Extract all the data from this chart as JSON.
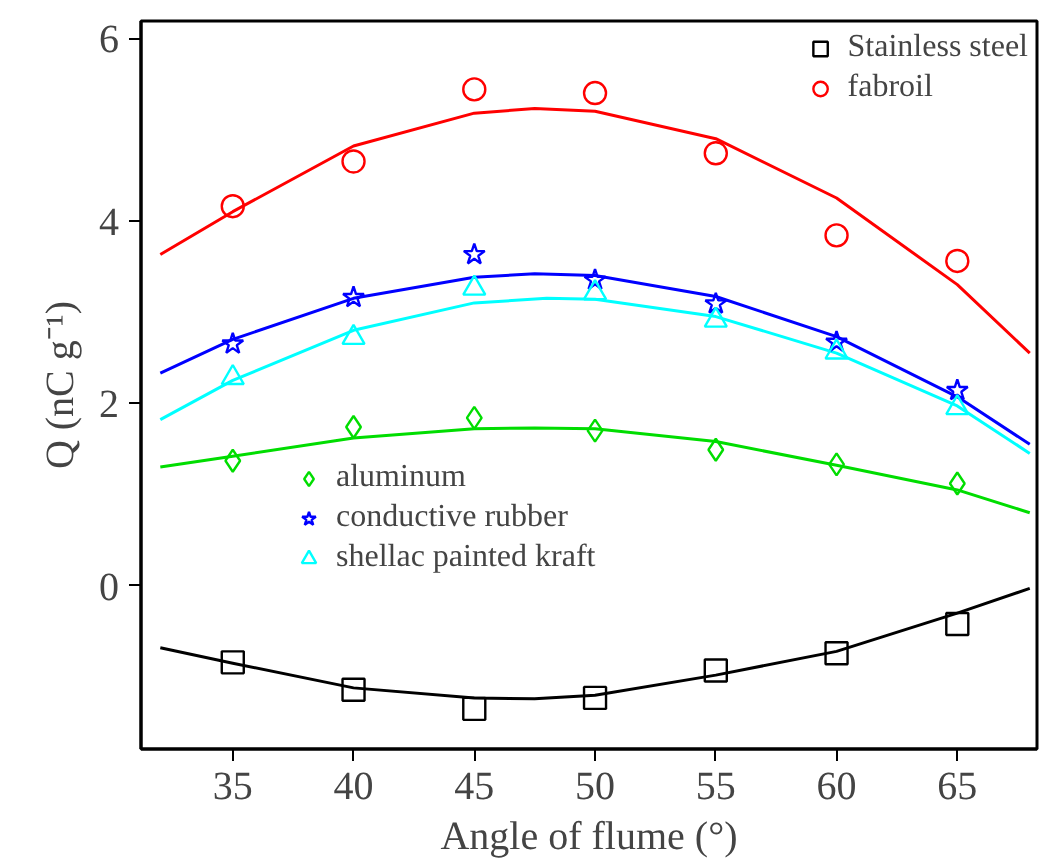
{
  "chart_data": {
    "type": "scatter",
    "xlabel": "Angle of flume (°)",
    "ylabel": "Q (nC g⁻¹)",
    "x": [
      35,
      40,
      45,
      50,
      55,
      60,
      65
    ],
    "xlim": [
      31.2,
      68.3
    ],
    "ylim": [
      -1.79,
      6.19
    ],
    "xticks": [
      35,
      40,
      45,
      50,
      55,
      60,
      65
    ],
    "yticks": [
      0,
      2,
      4,
      6
    ],
    "grid": false,
    "legend": "top right",
    "series": [
      {
        "name": "Stainless steel",
        "color": "#000000",
        "marker": "square",
        "values": [
          -0.84,
          -1.14,
          -1.35,
          -1.23,
          -0.93,
          -0.74,
          -0.42
        ]
      },
      {
        "name": "fabroil",
        "color": "#ff0000",
        "marker": "circle",
        "values": [
          4.16,
          4.65,
          5.44,
          5.4,
          4.74,
          3.84,
          3.56
        ]
      },
      {
        "name": "aluminum",
        "color": "#00dd00",
        "marker": "diamond",
        "values": [
          1.37,
          1.74,
          1.84,
          1.7,
          1.49,
          1.33,
          1.12
        ]
      },
      {
        "name": "conductive rubber",
        "color": "#0000ff",
        "marker": "star",
        "values": [
          2.65,
          3.16,
          3.63,
          3.35,
          3.09,
          2.67,
          2.14
        ]
      },
      {
        "name": "shellac painted kraft",
        "color": "#00ffff",
        "marker": "triangle",
        "values": [
          2.28,
          2.72,
          3.26,
          3.21,
          2.91,
          2.56,
          1.95
        ]
      },
      {
        "type": "line",
        "color": "#000000",
        "x": [
          32,
          35,
          40,
          45,
          47.5,
          50,
          55,
          60,
          65,
          68
        ],
        "values": [
          -0.68,
          -0.85,
          -1.12,
          -1.23,
          -1.24,
          -1.2,
          -0.98,
          -0.72,
          -0.3,
          -0.03
        ]
      },
      {
        "type": "line",
        "color": "#ff0000",
        "x": [
          32,
          35,
          40,
          45,
          47.5,
          50,
          55,
          60,
          65,
          68
        ],
        "values": [
          3.63,
          4.1,
          4.82,
          5.18,
          5.23,
          5.2,
          4.9,
          4.25,
          3.3,
          2.55
        ]
      },
      {
        "type": "line",
        "color": "#00dd00",
        "x": [
          32,
          35,
          40,
          45,
          47.5,
          50,
          55,
          60,
          65,
          68
        ],
        "values": [
          1.3,
          1.42,
          1.62,
          1.72,
          1.73,
          1.72,
          1.58,
          1.32,
          1.05,
          0.8
        ]
      },
      {
        "type": "line",
        "color": "#0000ff",
        "x": [
          32,
          35,
          40,
          45,
          47.5,
          50,
          55,
          60,
          65,
          68
        ],
        "values": [
          2.33,
          2.7,
          3.15,
          3.38,
          3.42,
          3.4,
          3.17,
          2.73,
          2.07,
          1.55
        ]
      },
      {
        "type": "line",
        "color": "#00ffff",
        "x": [
          32,
          35,
          40,
          45,
          48,
          50,
          55,
          60,
          65,
          68
        ],
        "values": [
          1.82,
          2.25,
          2.8,
          3.1,
          3.15,
          3.14,
          2.95,
          2.55,
          1.97,
          1.45
        ]
      }
    ]
  }
}
